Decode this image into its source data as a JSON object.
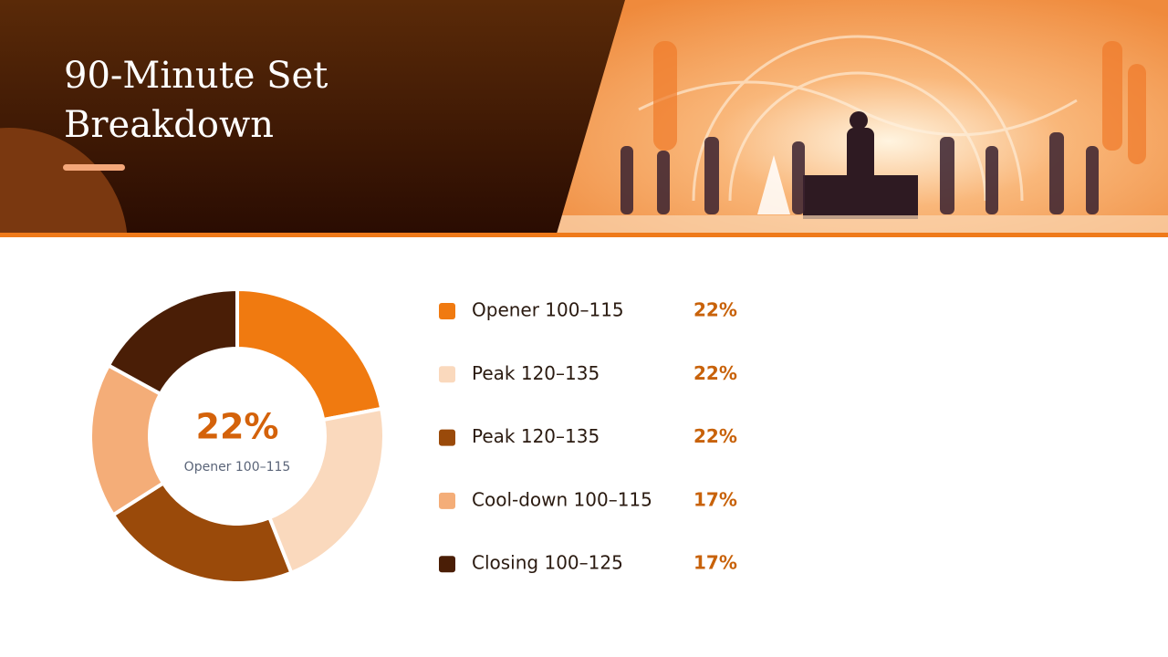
{
  "chart_data": {
    "type": "donut",
    "title": "90-Minute Set Breakdown",
    "categories": [
      "Opener 100–115",
      "Peak 120–135",
      "Peak 120–135",
      "Cool-down 100–115",
      "Closing 100–125"
    ],
    "values": [
      22,
      22,
      22,
      17,
      17
    ],
    "value_labels": [
      "22%",
      "22%",
      "22%",
      "17%",
      "17%"
    ],
    "colors": [
      "#f07a10",
      "#fad9bd",
      "#9a4a0a",
      "#f4ad78",
      "#4a1e06"
    ]
  }
}
